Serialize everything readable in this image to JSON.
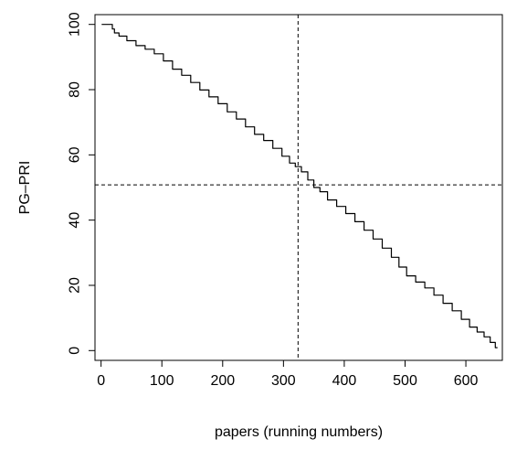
{
  "chart_data": {
    "type": "line",
    "title": "",
    "xlabel": "papers (running numbers)",
    "ylabel": "PG–PRI",
    "xlim": [
      -10,
      660
    ],
    "ylim": [
      -3,
      103
    ],
    "xticks": [
      {
        "value": 0,
        "label": "0"
      },
      {
        "value": 100,
        "label": "100"
      },
      {
        "value": 200,
        "label": "200"
      },
      {
        "value": 300,
        "label": "300"
      },
      {
        "value": 400,
        "label": "400"
      },
      {
        "value": 500,
        "label": "500"
      },
      {
        "value": 600,
        "label": "600"
      }
    ],
    "yticks": [
      {
        "value": 0,
        "label": "0"
      },
      {
        "value": 20,
        "label": "20"
      },
      {
        "value": 40,
        "label": "40"
      },
      {
        "value": 60,
        "label": "60"
      },
      {
        "value": 80,
        "label": "80"
      },
      {
        "value": 100,
        "label": "100"
      }
    ],
    "grid": false,
    "reference_lines": {
      "vertical_x": 324,
      "horizontal_y": 50.8,
      "style": "dashed"
    },
    "series": [
      {
        "color": "#000000",
        "points": [
          [
            1,
            100
          ],
          [
            17,
            100
          ],
          [
            20,
            98.6
          ],
          [
            24,
            97.4
          ],
          [
            35,
            96.4
          ],
          [
            50,
            95.0
          ],
          [
            65,
            93.5
          ],
          [
            80,
            92.4
          ],
          [
            95,
            91.0
          ],
          [
            110,
            88.8
          ],
          [
            125,
            86.3
          ],
          [
            140,
            84.4
          ],
          [
            155,
            82.2
          ],
          [
            170,
            79.9
          ],
          [
            185,
            77.8
          ],
          [
            200,
            75.7
          ],
          [
            215,
            73.2
          ],
          [
            230,
            71.0
          ],
          [
            245,
            68.6
          ],
          [
            260,
            66.3
          ],
          [
            275,
            64.4
          ],
          [
            290,
            62.0
          ],
          [
            305,
            59.6
          ],
          [
            315,
            57.5
          ],
          [
            324,
            56.4
          ],
          [
            335,
            54.8
          ],
          [
            345,
            52.3
          ],
          [
            355,
            50.0
          ],
          [
            365,
            48.7
          ],
          [
            380,
            46.2
          ],
          [
            395,
            44.2
          ],
          [
            410,
            42.0
          ],
          [
            425,
            39.5
          ],
          [
            440,
            36.9
          ],
          [
            455,
            34.2
          ],
          [
            470,
            31.4
          ],
          [
            485,
            28.6
          ],
          [
            495,
            25.6
          ],
          [
            510,
            22.9
          ],
          [
            525,
            21.0
          ],
          [
            540,
            19.2
          ],
          [
            555,
            17.0
          ],
          [
            570,
            14.5
          ],
          [
            585,
            12.2
          ],
          [
            600,
            9.6
          ],
          [
            612,
            7.2
          ],
          [
            625,
            5.7
          ],
          [
            635,
            4.2
          ],
          [
            645,
            2.5
          ],
          [
            652,
            0.9
          ]
        ]
      }
    ]
  }
}
